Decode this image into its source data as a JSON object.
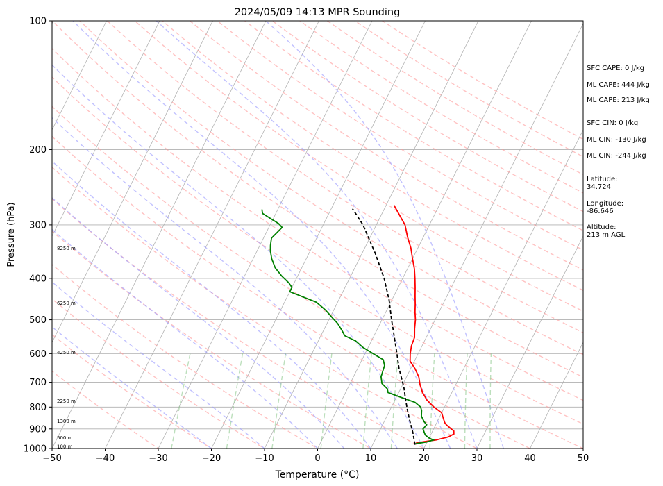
{
  "chart_data": {
    "type": "skew-t",
    "title": "2024/05/09 14:13 MPR Sounding",
    "xlabel": "Temperature (°C)",
    "ylabel": "Pressure (hPa)",
    "xlim": [
      -50,
      50
    ],
    "ylim": [
      1000,
      100
    ],
    "y_scale": "log",
    "x_ticks": [
      -50,
      -40,
      -30,
      -20,
      -10,
      0,
      10,
      20,
      30,
      40,
      50
    ],
    "x_tick_labels": [
      "−50",
      "−40",
      "−30",
      "−20",
      "−10",
      "0",
      "10",
      "20",
      "30",
      "40",
      "50"
    ],
    "y_ticks": [
      1000,
      900,
      800,
      700,
      600,
      500,
      400,
      300,
      200,
      100
    ],
    "y_tick_labels": [
      "1000",
      "900",
      "800",
      "700",
      "600",
      "500",
      "400",
      "300",
      "200",
      "100"
    ],
    "grid": true,
    "height_labels": [
      {
        "text": "100 m",
        "p": 988
      },
      {
        "text": "500 m",
        "p": 943
      },
      {
        "text": "1300 m",
        "p": 862
      },
      {
        "text": "2250 m",
        "p": 774
      },
      {
        "text": "4250 m",
        "p": 596
      },
      {
        "text": "6250 m",
        "p": 457
      },
      {
        "text": "8250 m",
        "p": 340
      }
    ],
    "series": [
      {
        "role": "temperature",
        "color": "#ff0000",
        "points": [
          [
            18.0,
            970
          ],
          [
            21.5,
            955
          ],
          [
            23.5,
            940
          ],
          [
            24.3,
            925
          ],
          [
            24.0,
            910
          ],
          [
            23.0,
            895
          ],
          [
            22.0,
            880
          ],
          [
            21.5,
            870
          ],
          [
            21.0,
            855
          ],
          [
            20.5,
            840
          ],
          [
            20.0,
            825
          ],
          [
            18.0,
            800
          ],
          [
            16.0,
            770
          ],
          [
            14.5,
            740
          ],
          [
            13.3,
            710
          ],
          [
            12.3,
            680
          ],
          [
            10.8,
            650
          ],
          [
            9.2,
            625
          ],
          [
            8.5,
            600
          ],
          [
            8.0,
            575
          ],
          [
            7.8,
            550
          ],
          [
            7.0,
            525
          ],
          [
            6.3,
            500
          ],
          [
            5.5,
            480
          ],
          [
            4.8,
            460
          ],
          [
            4.0,
            440
          ],
          [
            3.2,
            420
          ],
          [
            2.3,
            400
          ],
          [
            1.3,
            380
          ],
          [
            0.0,
            360
          ],
          [
            -1.3,
            340
          ],
          [
            -3.0,
            320
          ],
          [
            -4.6,
            300
          ],
          [
            -6.5,
            285
          ],
          [
            -8.5,
            270
          ]
        ]
      },
      {
        "role": "dewpoint",
        "color": "#008000",
        "points": [
          [
            18.0,
            975
          ],
          [
            20.0,
            965
          ],
          [
            21.0,
            955
          ],
          [
            20.0,
            945
          ],
          [
            19.0,
            930
          ],
          [
            18.5,
            915
          ],
          [
            18.0,
            900
          ],
          [
            18.3,
            880
          ],
          [
            17.5,
            865
          ],
          [
            16.5,
            840
          ],
          [
            16.0,
            815
          ],
          [
            15.5,
            800
          ],
          [
            14.0,
            780
          ],
          [
            11.0,
            760
          ],
          [
            8.0,
            740
          ],
          [
            7.5,
            725
          ],
          [
            6.0,
            705
          ],
          [
            5.2,
            680
          ],
          [
            5.0,
            660
          ],
          [
            4.8,
            640
          ],
          [
            4.0,
            620
          ],
          [
            1.5,
            600
          ],
          [
            -1.0,
            580
          ],
          [
            -3.0,
            560
          ],
          [
            -5.5,
            545
          ],
          [
            -6.5,
            530
          ],
          [
            -8.0,
            510
          ],
          [
            -9.5,
            495
          ],
          [
            -11.5,
            475
          ],
          [
            -14.0,
            455
          ],
          [
            -17.5,
            440
          ],
          [
            -20.0,
            430
          ],
          [
            -20.0,
            420
          ],
          [
            -21.0,
            410
          ],
          [
            -23.0,
            395
          ],
          [
            -25.0,
            378
          ],
          [
            -26.5,
            360
          ],
          [
            -27.5,
            345
          ],
          [
            -28.0,
            335
          ],
          [
            -28.5,
            322
          ],
          [
            -28.0,
            313
          ],
          [
            -27.5,
            304
          ],
          [
            -28.5,
            298
          ],
          [
            -30.5,
            290
          ],
          [
            -32.5,
            282
          ],
          [
            -33.0,
            276
          ]
        ]
      },
      {
        "role": "parcel",
        "color": "#000000",
        "dash": "dashed",
        "points": [
          [
            18.0,
            980
          ],
          [
            17.5,
            960
          ],
          [
            16.5,
            920
          ],
          [
            15.0,
            870
          ],
          [
            13.5,
            820
          ],
          [
            12.0,
            770
          ],
          [
            10.5,
            720
          ],
          [
            9.0,
            680
          ],
          [
            7.8,
            650
          ],
          [
            6.0,
            600
          ],
          [
            4.0,
            550
          ],
          [
            1.8,
            500
          ],
          [
            -0.5,
            450
          ],
          [
            -3.5,
            400
          ],
          [
            -7.5,
            350
          ],
          [
            -12.5,
            300
          ],
          [
            -16.0,
            275
          ]
        ]
      }
    ],
    "background_lines": {
      "isotherm_step": 10,
      "dry_adiabat_thetas_c": [
        -30,
        -20,
        -10,
        0,
        10,
        20,
        30,
        40,
        50,
        60,
        70,
        80,
        90,
        100,
        110,
        120,
        130,
        140,
        150,
        160,
        170,
        180,
        190,
        200
      ],
      "moist_adiabat_start_temps_c": [
        -20,
        -10,
        0,
        5,
        10,
        15,
        20,
        25,
        30,
        35
      ],
      "mixing_ratios_gkg": [
        0.4,
        1,
        2,
        4,
        7,
        10,
        16,
        24,
        32
      ]
    },
    "colors": {
      "isotherm": "#b0b0b0",
      "dry_adiabat": "#ff9999",
      "moist_adiabat": "#9f9fff",
      "mixing_ratio": "#8fc98f"
    }
  },
  "annotations": [
    {
      "text": "SFC CAPE: 0 J/kg"
    },
    {
      "text": "ML CAPE: 444 J/kg"
    },
    {
      "text": "ML CAPE: 213 J/kg"
    },
    {
      "text": "SFC CIN: 0 J/kg"
    },
    {
      "text": "ML CIN: -130 J/kg"
    },
    {
      "text": "ML CIN: -244 J/kg"
    },
    {
      "text": "Latitude:\n34.724"
    },
    {
      "text": "Longitude:\n-86.646"
    },
    {
      "text": "Altitude:\n213 m AGL"
    }
  ]
}
